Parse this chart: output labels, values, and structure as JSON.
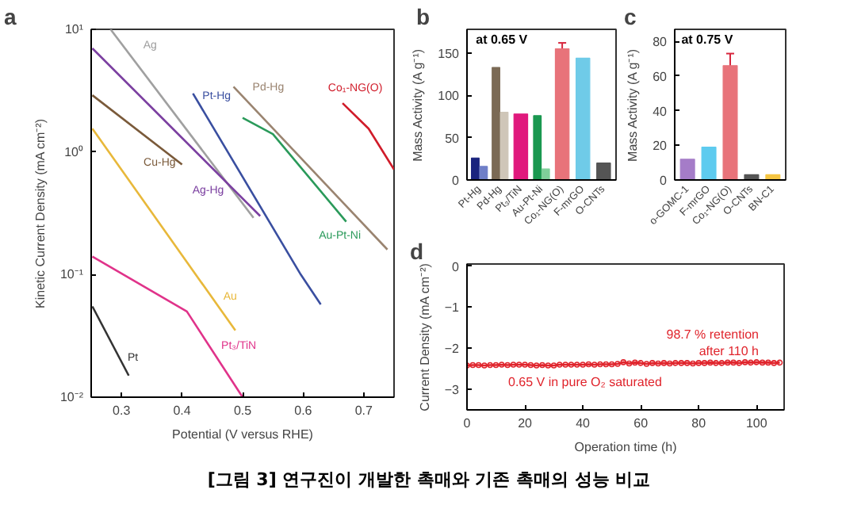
{
  "chart_data": [
    {
      "type": "line",
      "title": "a",
      "xlabel": "Potential (V versus RHE)",
      "ylabel": "Kinetic Current Density (mA cm⁻²)",
      "log": "y",
      "xlim": [
        0.25,
        0.75
      ],
      "ylim": [
        0.01,
        10
      ],
      "xticks": [
        0.3,
        0.4,
        0.5,
        0.6,
        0.7
      ],
      "yticks": [
        {
          "value": 0.01,
          "label": "10⁻²"
        },
        {
          "value": 0.1,
          "label": "10⁻¹"
        },
        {
          "value": 1,
          "label": "10⁰"
        },
        {
          "value": 10,
          "label": "10¹"
        }
      ],
      "series": [
        {
          "name": "Ag",
          "color": "#a0a0a0",
          "x": [
            0.282,
            0.518
          ],
          "values": [
            10,
            0.29
          ]
        },
        {
          "name": "Ag-Hg",
          "color": "#7b3fa0",
          "x": [
            0.252,
            0.529
          ],
          "values": [
            7.0,
            0.3
          ]
        },
        {
          "name": "Cu-Hg",
          "color": "#7a5a3a",
          "x": [
            0.252,
            0.4
          ],
          "values": [
            2.9,
            0.79
          ]
        },
        {
          "name": "Au",
          "color": "#e8b83a",
          "x": [
            0.252,
            0.488
          ],
          "values": [
            1.55,
            0.035
          ]
        },
        {
          "name": "Pt",
          "color": "#333333",
          "x": [
            0.252,
            0.312
          ],
          "values": [
            0.055,
            0.015
          ]
        },
        {
          "name": "Pt₃/TiN",
          "color": "#e0338a",
          "x": [
            0.252,
            0.408,
            0.5
          ],
          "values": [
            0.14,
            0.05,
            0.01
          ]
        },
        {
          "name": "Pt-Hg",
          "color": "#3a4fa0",
          "x": [
            0.418,
            0.596,
            0.629
          ],
          "values": [
            3.0,
            0.1,
            0.057
          ]
        },
        {
          "name": "Pd-Hg",
          "color": "#9a8470",
          "x": [
            0.485,
            0.739
          ],
          "values": [
            3.4,
            0.16
          ]
        },
        {
          "name": "Au-Pt-Ni",
          "color": "#2a9a5a",
          "x": [
            0.5,
            0.55,
            0.671
          ],
          "values": [
            1.9,
            1.4,
            0.27
          ]
        },
        {
          "name": "Co₁-NG(O)",
          "color": "#d01c2a",
          "x": [
            0.665,
            0.708,
            0.75
          ],
          "values": [
            2.5,
            1.55,
            0.72
          ]
        }
      ]
    },
    {
      "type": "bar",
      "title": "b",
      "ylabel": "Mass Activity (A g⁻¹)",
      "annotations": [
        "at 0.65 V"
      ],
      "categories": [
        "Pt-Hg",
        "Pd-Hg",
        "Pt₃/TiN",
        "Au-Pt-Ni",
        "Co₁-NG(O)",
        "F-mrGO",
        "O-CNTs"
      ],
      "ylim": [
        0,
        178
      ],
      "yticks": [
        0,
        50,
        100,
        150
      ],
      "series": [
        {
          "colors": [
            "#1a237e",
            "#7b6a55",
            "#e0197d",
            "#1a9850",
            "#e8737a",
            "#6fcbe8",
            "#555555"
          ],
          "values": [
            26,
            133,
            78,
            76,
            155,
            144,
            20
          ],
          "errors": [
            null,
            null,
            null,
            null,
            7,
            null,
            null
          ]
        },
        {
          "colors": [
            "#6f7fc8",
            "#cfc6b8",
            null,
            "#7fcf9a",
            null,
            null,
            null
          ],
          "values": [
            16,
            80,
            null,
            13,
            null,
            null,
            null
          ]
        }
      ]
    },
    {
      "type": "bar",
      "title": "c",
      "ylabel": "Mass Activity (A g⁻¹)",
      "annotations": [
        "at 0.75 V"
      ],
      "categories": [
        "o-GOMC-1",
        "F-mrGO",
        "Co₁-NG(O)",
        "O-CNTs",
        "BN-C1"
      ],
      "ylim": [
        0,
        87
      ],
      "yticks": [
        0,
        20,
        40,
        60,
        80
      ],
      "series": [
        {
          "colors": [
            "#a57cc8",
            "#5ecbef",
            "#e8737a",
            "#555555",
            "#f5c542"
          ],
          "values": [
            12,
            19,
            66,
            3,
            3
          ],
          "errors": [
            null,
            null,
            7,
            null,
            null
          ]
        }
      ]
    },
    {
      "type": "line",
      "title": "d",
      "xlabel": "Operation time (h)",
      "ylabel": "Current Density (mA cm⁻²)",
      "marker": "circle",
      "annotations": [
        "98.7 % retention\nafter 110 h",
        "0.65 V in pure O₂ saturated"
      ],
      "xlim": [
        0,
        109.5
      ],
      "ylim": [
        -3.5,
        0.05
      ],
      "xticks": [
        0,
        20,
        40,
        60,
        80,
        100
      ],
      "yticks": [
        0,
        -1,
        -2,
        -3
      ],
      "series": [
        {
          "color": "#e0242c",
          "x": [
            0,
            2,
            4,
            6,
            8,
            10,
            12,
            14,
            16,
            18,
            20,
            22,
            24,
            26,
            28,
            30,
            32,
            34,
            36,
            38,
            40,
            42,
            44,
            46,
            48,
            50,
            52,
            54,
            56,
            58,
            60,
            62,
            64,
            66,
            68,
            70,
            72,
            74,
            76,
            78,
            80,
            82,
            84,
            86,
            88,
            90,
            92,
            94,
            96,
            98,
            100,
            102,
            104,
            106,
            108
          ],
          "values": [
            -2.42,
            -2.41,
            -2.41,
            -2.42,
            -2.41,
            -2.41,
            -2.4,
            -2.41,
            -2.4,
            -2.4,
            -2.4,
            -2.41,
            -2.42,
            -2.41,
            -2.42,
            -2.42,
            -2.4,
            -2.4,
            -2.4,
            -2.4,
            -2.4,
            -2.39,
            -2.4,
            -2.39,
            -2.39,
            -2.39,
            -2.38,
            -2.34,
            -2.37,
            -2.35,
            -2.36,
            -2.38,
            -2.36,
            -2.37,
            -2.36,
            -2.37,
            -2.36,
            -2.36,
            -2.36,
            -2.37,
            -2.36,
            -2.36,
            -2.35,
            -2.36,
            -2.36,
            -2.35,
            -2.35,
            -2.36,
            -2.34,
            -2.35,
            -2.34,
            -2.35,
            -2.35,
            -2.36,
            -2.35
          ]
        }
      ]
    },
    {
      "type": "other",
      "title": "[그림 3] 연구진이 개발한 촉매와 기존 촉매의 성능 비교"
    }
  ]
}
